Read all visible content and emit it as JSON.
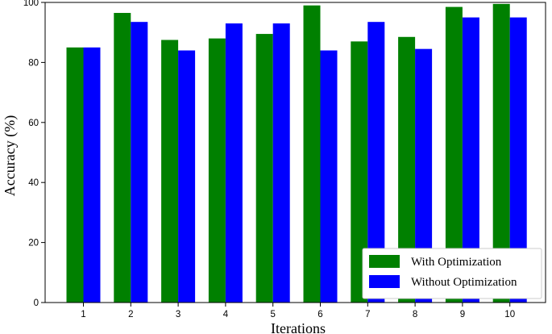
{
  "chart_data": {
    "type": "bar",
    "categories": [
      "1",
      "2",
      "3",
      "4",
      "5",
      "6",
      "7",
      "8",
      "9",
      "10"
    ],
    "series": [
      {
        "name": "With Optimization",
        "color": "#008000",
        "values": [
          85,
          96.5,
          87.5,
          88,
          89.5,
          99,
          87,
          88.5,
          98.5,
          99.5
        ]
      },
      {
        "name": "Without Optimization",
        "color": "#0000ff",
        "values": [
          85,
          93.5,
          84,
          93,
          93,
          84,
          93.5,
          84.5,
          95,
          95
        ]
      }
    ],
    "xlabel": "Iterations",
    "ylabel": "Accuracy (%)",
    "ylim": [
      0,
      100
    ],
    "yticks": [
      0,
      20,
      40,
      60,
      80,
      100
    ],
    "grid": false,
    "legend_position": "lower-right"
  }
}
